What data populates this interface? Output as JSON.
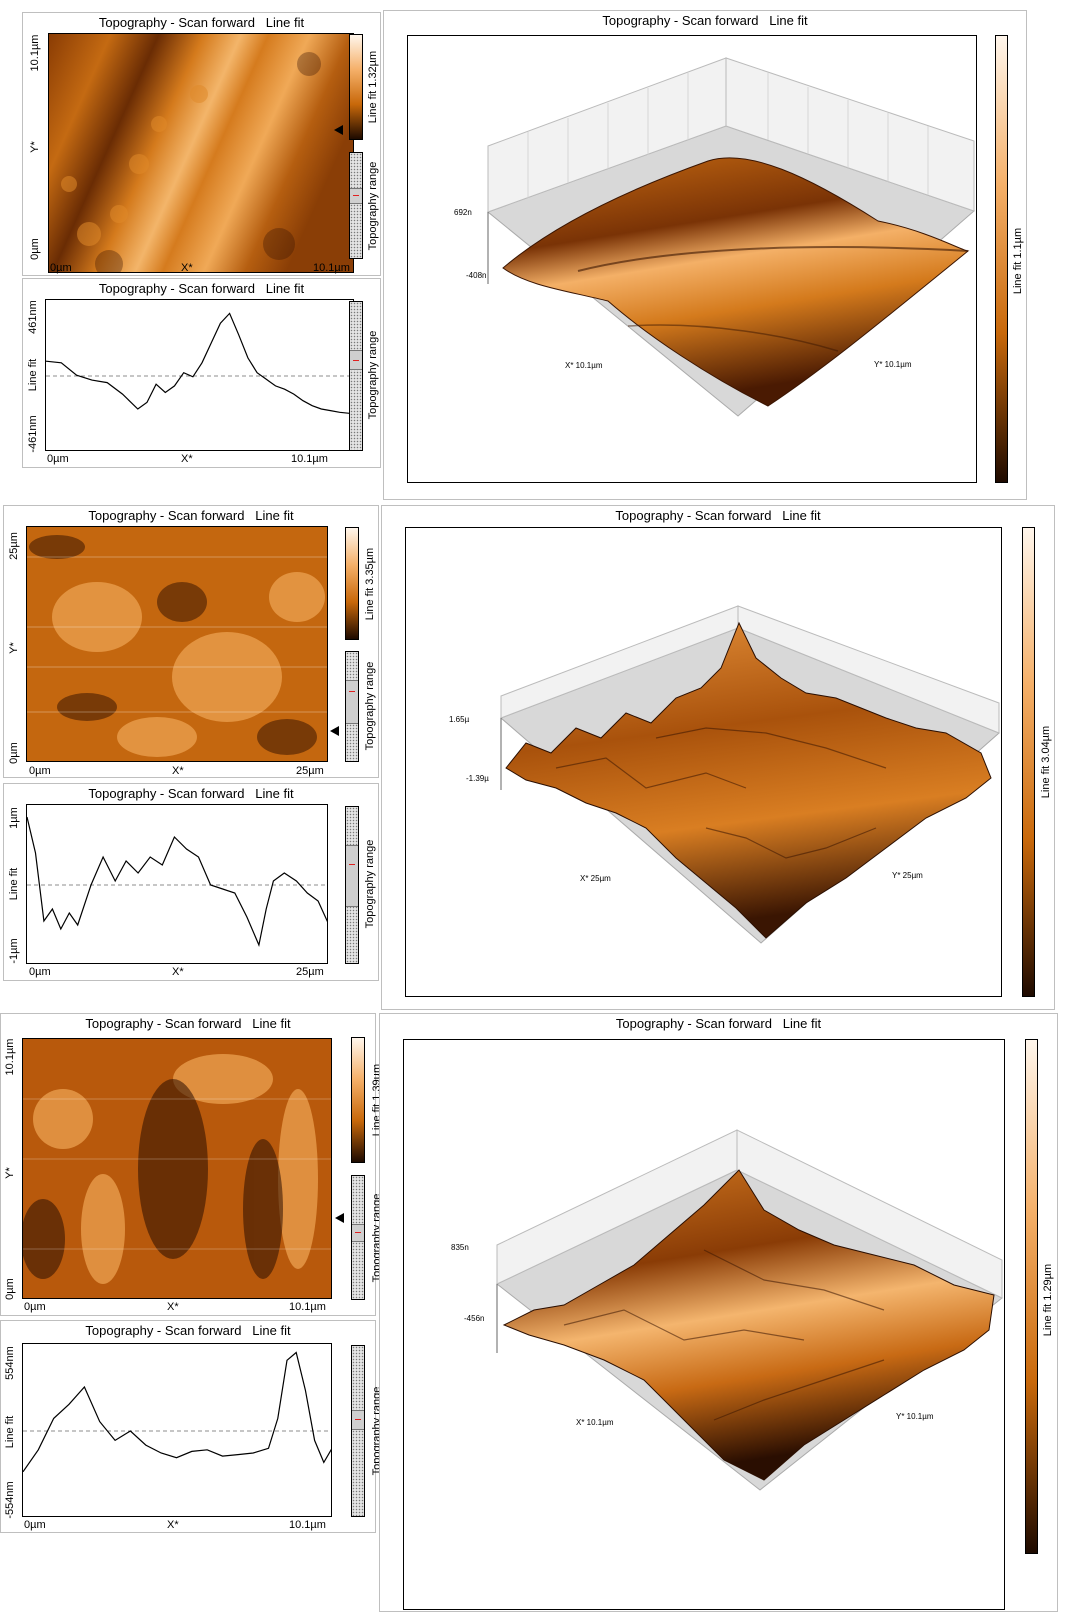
{
  "colors": {
    "afm_dark": "#1e0a00",
    "afm_mid": "#c8680a",
    "afm_light": "#ffd9a8",
    "afm_white": "#fff6ec",
    "profile_line": "#000000",
    "zero_line": "#8c8c8c",
    "range_marker": "#e02020"
  },
  "sets": [
    {
      "image": {
        "title": "Topography - Scan forward   Line fit",
        "y_top": "10.1µm",
        "y_mid": "Y*",
        "y_bottom": "0µm",
        "x_left": "0µm",
        "x_mid": "X*",
        "x_right": "10.1µm",
        "colorbar_label": "Line fit 1.32µm",
        "range_label": "Topography range"
      },
      "profile": {
        "title": "Topography - Scan forward   Line fit",
        "y_top": "461nm",
        "y_mid": "Line fit",
        "y_bottom": "-461nm",
        "x_left": "0µm",
        "x_mid": "X*",
        "x_right": "10.1µm",
        "range_label": "Topography range"
      },
      "view3d": {
        "title": "Topography - Scan forward   Line fit",
        "z_top": "692n",
        "z_bottom": "-408n",
        "x_axis": "X* 10.1µm",
        "y_axis": "Y* 10.1µm",
        "colorbar_label": "Line fit 1.1µm"
      }
    },
    {
      "image": {
        "title": "Topography - Scan forward   Line fit",
        "y_top": "25µm",
        "y_mid": "Y*",
        "y_bottom": "0µm",
        "x_left": "0µm",
        "x_mid": "X*",
        "x_right": "25µm",
        "colorbar_label": "Line fit 3.35µm",
        "range_label": "Topography range"
      },
      "profile": {
        "title": "Topography - Scan forward   Line fit",
        "y_top": "1µm",
        "y_mid": "Line fit",
        "y_bottom": "-1µm",
        "x_left": "0µm",
        "x_mid": "X*",
        "x_right": "25µm",
        "range_label": "Topography range"
      },
      "view3d": {
        "title": "Topography - Scan forward   Line fit",
        "z_top": "1.65µ",
        "z_bottom": "-1.39µ",
        "x_axis": "X* 25µm",
        "y_axis": "Y* 25µm",
        "colorbar_label": "Line fit 3.04µm"
      }
    },
    {
      "image": {
        "title": "Topography - Scan forward   Line fit",
        "y_top": "10.1µm",
        "y_mid": "Y*",
        "y_bottom": "0µm",
        "x_left": "0µm",
        "x_mid": "X*",
        "x_right": "10.1µm",
        "colorbar_label": "Line fit 1.39µm",
        "range_label": "Topography range"
      },
      "profile": {
        "title": "Topography - Scan forward   Line fit",
        "y_top": "554nm",
        "y_mid": "Line fit",
        "y_bottom": "-554nm",
        "x_left": "0µm",
        "x_mid": "X*",
        "x_right": "10.1µm",
        "range_label": "Topography range"
      },
      "view3d": {
        "title": "Topography - Scan forward   Line fit",
        "z_top": "835n",
        "z_bottom": "-456n",
        "x_axis": "X* 10.1µm",
        "y_axis": "Y* 10.1µm",
        "colorbar_label": "Line fit 1.29µm"
      }
    }
  ],
  "chart_data": [
    {
      "type": "line",
      "title": "Topography - Scan forward   Line fit",
      "xlabel": "X*",
      "ylabel": "Line fit",
      "xlim": [
        0,
        10.1
      ],
      "ylim": [
        -461,
        461
      ],
      "x": [
        0,
        0.5,
        1.0,
        1.5,
        2.0,
        2.5,
        3.0,
        3.3,
        3.6,
        3.9,
        4.2,
        4.5,
        4.8,
        5.1,
        5.4,
        5.7,
        6.0,
        6.3,
        6.6,
        6.9,
        7.2,
        7.5,
        7.8,
        8.1,
        8.4,
        8.7,
        9.0,
        9.3,
        9.6,
        10.1
      ],
      "series": [
        {
          "values": [
            90,
            80,
            5,
            -25,
            -40,
            -110,
            -200,
            -160,
            -50,
            -100,
            -60,
            20,
            -5,
            80,
            200,
            320,
            380,
            250,
            110,
            20,
            -20,
            -60,
            -80,
            -110,
            -150,
            -180,
            -200,
            -210,
            -220,
            -230
          ]
        }
      ]
    },
    {
      "type": "line",
      "title": "Topography - Scan forward   Line fit",
      "xlabel": "X*",
      "ylabel": "Line fit",
      "xlim": [
        0,
        25
      ],
      "ylim": [
        -1,
        1
      ],
      "x": [
        0,
        0.7,
        1.4,
        2.1,
        2.8,
        3.5,
        4.2,
        5.3,
        6.3,
        7.3,
        8.2,
        9.2,
        10.2,
        11.2,
        12.2,
        13.2,
        14.2,
        15.2,
        16.2,
        17.2,
        18.2,
        19.2,
        19.8,
        20.4,
        21.3,
        22.3,
        23.2,
        24.1,
        25
      ],
      "series": [
        {
          "values": [
            0.85,
            0.4,
            -0.45,
            -0.3,
            -0.55,
            -0.35,
            -0.5,
            0.0,
            0.35,
            0.05,
            0.3,
            0.15,
            0.35,
            0.25,
            0.6,
            0.45,
            0.35,
            0.0,
            -0.05,
            -0.1,
            -0.4,
            -0.75,
            -0.3,
            0.05,
            0.15,
            0.05,
            -0.1,
            -0.2,
            -0.5
          ]
        }
      ]
    },
    {
      "type": "line",
      "title": "Topography - Scan forward   Line fit",
      "xlabel": "X*",
      "ylabel": "Line fit",
      "xlim": [
        0,
        10.1
      ],
      "ylim": [
        -554,
        554
      ],
      "x": [
        0,
        0.5,
        1.0,
        1.5,
        2.0,
        2.5,
        3.0,
        3.5,
        4.0,
        4.5,
        5.0,
        5.5,
        6.0,
        6.5,
        7.0,
        7.5,
        8.0,
        8.3,
        8.6,
        8.9,
        9.2,
        9.5,
        9.8,
        10.1
      ],
      "series": [
        {
          "values": [
            -260,
            -120,
            80,
            170,
            280,
            60,
            -60,
            0,
            -90,
            -140,
            -170,
            -130,
            -120,
            -160,
            -150,
            -140,
            -110,
            80,
            450,
            500,
            260,
            -60,
            -200,
            -100
          ]
        }
      ]
    }
  ]
}
